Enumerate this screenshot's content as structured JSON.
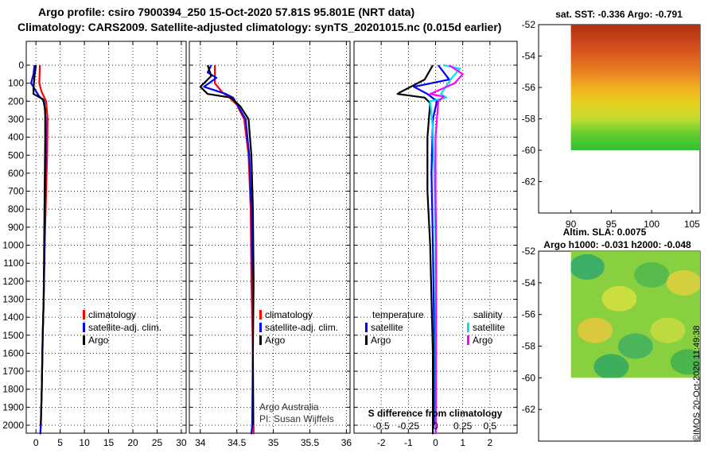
{
  "header": {
    "title_line1": "Argo profile: csiro 7900394_250 15-Oct-2020 57.81S 95.801E (NRT data)",
    "title_line2": "Climatology: CARS2009. Satellite-adjusted climatology: synTS_20201015.nc (0.015d earlier)"
  },
  "colors": {
    "climatology": "#ff0000",
    "satellite_clim": "#0000ff",
    "argo": "#000000",
    "salinity_satellite": "#00e5ee",
    "salinity_argo": "#ff00ff"
  },
  "chart_data": [
    {
      "name": "temperature-profile",
      "type": "line",
      "xlim": [
        -2,
        31
      ],
      "ylim": [
        0,
        2100
      ],
      "y_reversed": true,
      "grid": true,
      "x_ticks": [
        0,
        5,
        10,
        15,
        20,
        25,
        30
      ],
      "y_ticks": [
        0,
        100,
        200,
        300,
        400,
        500,
        600,
        700,
        800,
        900,
        1000,
        1100,
        1200,
        1300,
        1400,
        1500,
        1600,
        1700,
        1800,
        1900,
        2000
      ],
      "legend": [
        {
          "label": "climatology",
          "color": "#ff0000"
        },
        {
          "label": "satellite-adj. clim.",
          "color": "#0000ff"
        },
        {
          "label": "Argo",
          "color": "#000000"
        }
      ],
      "series": [
        {
          "name": "climatology",
          "color": "#ff0000",
          "points": [
            [
              0.8,
              0
            ],
            [
              0.7,
              100
            ],
            [
              1.2,
              150
            ],
            [
              2.1,
              200
            ],
            [
              2.4,
              300
            ],
            [
              2.3,
              500
            ],
            [
              2.2,
              600
            ],
            [
              2.0,
              800
            ],
            [
              1.8,
              1000
            ],
            [
              1.6,
              1300
            ],
            [
              1.4,
              1500
            ],
            [
              1.2,
              1800
            ],
            [
              1.0,
              2000
            ],
            [
              0.9,
              2050
            ]
          ]
        },
        {
          "name": "satellite-adj. clim.",
          "color": "#0000ff",
          "points": [
            [
              -0.3,
              0
            ],
            [
              -0.5,
              50
            ],
            [
              -1.0,
              100
            ],
            [
              0.6,
              170
            ],
            [
              1.7,
              200
            ],
            [
              2.0,
              300
            ],
            [
              2.0,
              500
            ],
            [
              1.9,
              700
            ],
            [
              1.8,
              1000
            ],
            [
              1.6,
              1300
            ],
            [
              1.4,
              1500
            ],
            [
              1.2,
              1800
            ],
            [
              1.0,
              2000
            ],
            [
              0.9,
              2050
            ]
          ]
        },
        {
          "name": "Argo",
          "color": "#000000",
          "points": [
            [
              0.0,
              0
            ],
            [
              -0.3,
              60
            ],
            [
              -0.5,
              130
            ],
            [
              -0.5,
              160
            ],
            [
              1.5,
              190
            ],
            [
              1.9,
              250
            ],
            [
              1.9,
              400
            ],
            [
              1.8,
              700
            ],
            [
              1.7,
              1000
            ],
            [
              1.6,
              1300
            ],
            [
              1.4,
              1500
            ],
            [
              1.2,
              1800
            ],
            [
              1.0,
              2000
            ]
          ]
        }
      ]
    },
    {
      "name": "salinity-profile",
      "type": "line",
      "xlim": [
        33.85,
        36.05
      ],
      "ylim": [
        0,
        2100
      ],
      "y_reversed": true,
      "grid": true,
      "x_ticks": [
        34,
        34.5,
        35,
        35.5,
        36
      ],
      "x_tick_labels": [
        "34",
        "34.5",
        "35",
        "35.5",
        "36"
      ],
      "legend": [
        {
          "label": "climatology",
          "color": "#ff0000"
        },
        {
          "label": "satellite-adj. clim.",
          "color": "#0000ff"
        },
        {
          "label": "Argo",
          "color": "#000000"
        }
      ],
      "annotation": [
        "Argo Australia",
        "PI: Susan Wijffels"
      ],
      "series": [
        {
          "name": "climatology",
          "color": "#ff0000",
          "points": [
            [
              34.2,
              0
            ],
            [
              34.2,
              100
            ],
            [
              34.3,
              150
            ],
            [
              34.4,
              180
            ],
            [
              34.5,
              220
            ],
            [
              34.6,
              300
            ],
            [
              34.66,
              500
            ],
            [
              34.69,
              800
            ],
            [
              34.7,
              1200
            ],
            [
              34.72,
              1600
            ],
            [
              34.73,
              2050
            ]
          ]
        },
        {
          "name": "satellite-adj. clim.",
          "color": "#0000ff",
          "points": [
            [
              34.15,
              0
            ],
            [
              34.1,
              40
            ],
            [
              34.22,
              70
            ],
            [
              34.05,
              120
            ],
            [
              34.35,
              160
            ],
            [
              34.45,
              180
            ],
            [
              34.52,
              230
            ],
            [
              34.62,
              300
            ],
            [
              34.67,
              500
            ],
            [
              34.7,
              800
            ],
            [
              34.72,
              1200
            ],
            [
              34.72,
              1600
            ],
            [
              34.71,
              2000
            ],
            [
              34.7,
              2050
            ]
          ]
        },
        {
          "name": "Argo",
          "color": "#000000",
          "points": [
            [
              34.1,
              0
            ],
            [
              34.15,
              60
            ],
            [
              34.0,
              120
            ],
            [
              34.1,
              160
            ],
            [
              34.42,
              180
            ],
            [
              34.55,
              230
            ],
            [
              34.66,
              300
            ],
            [
              34.7,
              500
            ],
            [
              34.72,
              800
            ],
            [
              34.73,
              1200
            ],
            [
              34.72,
              1600
            ],
            [
              34.72,
              2000
            ]
          ]
        }
      ]
    },
    {
      "name": "difference-profile",
      "type": "line",
      "xlim": [
        -3,
        3
      ],
      "ylim": [
        0,
        2100
      ],
      "y_reversed": true,
      "grid": true,
      "x_ticks": [
        -2,
        -1,
        0,
        1,
        2
      ],
      "x2_ticks": [
        -0.5,
        -0.25,
        0,
        0.25,
        0.5
      ],
      "x2_tick_labels": [
        "-0.5",
        "-0.25",
        "0",
        "0.25",
        "0.5"
      ],
      "xlabel": "S difference from climatology",
      "legend_headers": [
        "temperature",
        "salinity"
      ],
      "legend": [
        {
          "label": "satellite",
          "color": "#0000ff",
          "group": "temperature"
        },
        {
          "label": "Argo",
          "color": "#000000",
          "group": "temperature"
        },
        {
          "label": "satellite",
          "color": "#00e5ee",
          "group": "salinity"
        },
        {
          "label": "Argo",
          "color": "#ff00ff",
          "group": "salinity"
        }
      ],
      "series": [
        {
          "name": "temperature satellite",
          "color": "#0000ff",
          "points": [
            [
              0.1,
              0
            ],
            [
              0.3,
              40
            ],
            [
              0.5,
              80
            ],
            [
              -0.8,
              120
            ],
            [
              -0.3,
              160
            ],
            [
              0.05,
              200
            ],
            [
              -0.1,
              300
            ],
            [
              -0.15,
              600
            ],
            [
              -0.1,
              1000
            ],
            [
              -0.05,
              1500
            ],
            [
              -0.05,
              2000
            ]
          ]
        },
        {
          "name": "temperature Argo",
          "color": "#000000",
          "points": [
            [
              -0.1,
              0
            ],
            [
              -0.4,
              80
            ],
            [
              -1.3,
              150
            ],
            [
              -1.4,
              160
            ],
            [
              -0.4,
              180
            ],
            [
              -0.2,
              210
            ],
            [
              -0.3,
              400
            ],
            [
              -0.3,
              700
            ],
            [
              -0.2,
              1000
            ],
            [
              -0.15,
              1300
            ],
            [
              -0.1,
              1600
            ],
            [
              -0.1,
              2050
            ]
          ]
        },
        {
          "name": "salinity satellite",
          "color": "#00e5ee",
          "points": [
            [
              0.3,
              0
            ],
            [
              0.9,
              20
            ],
            [
              0.6,
              70
            ],
            [
              0.2,
              160
            ],
            [
              0.4,
              180
            ],
            [
              -0.2,
              200
            ],
            [
              -0.1,
              350
            ],
            [
              -0.05,
              600
            ],
            [
              0.0,
              1000
            ],
            [
              0.0,
              1500
            ],
            [
              0.0,
              2050
            ]
          ]
        },
        {
          "name": "salinity Argo",
          "color": "#ff00ff",
          "points": [
            [
              0.5,
              0
            ],
            [
              1.0,
              50
            ],
            [
              0.7,
              100
            ],
            [
              -0.2,
              160
            ],
            [
              0.3,
              175
            ],
            [
              0.1,
              200
            ],
            [
              0.0,
              400
            ],
            [
              0.0,
              700
            ],
            [
              0.02,
              1000
            ],
            [
              0.02,
              1500
            ],
            [
              0.01,
              2050
            ]
          ]
        }
      ]
    },
    {
      "name": "sst-map",
      "type": "heatmap",
      "title": "sat. SST: -0.336 Argo: -0.791",
      "x_ticks": [
        90,
        95,
        100,
        105
      ],
      "y_ticks": [
        -52,
        -54,
        -56,
        -58,
        -60,
        -62
      ],
      "xlim": [
        86,
        106
      ],
      "ylim": [
        -64,
        -52
      ],
      "extent": {
        "lon": [
          90,
          106
        ],
        "lat": [
          -60,
          -52
        ]
      },
      "gradient": [
        {
          "lat": -52,
          "color": "#b03010"
        },
        {
          "lat": -53.5,
          "color": "#d45020"
        },
        {
          "lat": -55,
          "color": "#e88020"
        },
        {
          "lat": -56,
          "color": "#f0b020"
        },
        {
          "lat": -57,
          "color": "#e8d020"
        },
        {
          "lat": -58,
          "color": "#c0dc30"
        },
        {
          "lat": -59,
          "color": "#60cc30"
        },
        {
          "lat": -60,
          "color": "#30c030"
        }
      ]
    },
    {
      "name": "sla-map",
      "type": "heatmap",
      "title_line1": "Altim. SLA: 0.0075",
      "title_line2": "Argo h1000: -0.031 h2000: -0.048",
      "y_ticks": [
        -52,
        -54,
        -56,
        -58,
        -60,
        -62
      ],
      "ylim": [
        -64,
        -52
      ],
      "extent": {
        "lon": [
          90,
          106
        ],
        "lat": [
          -60,
          -52
        ]
      },
      "base_color": "#88d040",
      "blobs": [
        {
          "lon": 92,
          "lat": -53,
          "color": "#30a870"
        },
        {
          "lon": 96,
          "lat": -55,
          "color": "#d8e040"
        },
        {
          "lon": 100,
          "lat": -53.5,
          "color": "#50b850"
        },
        {
          "lon": 104,
          "lat": -54,
          "color": "#e0d040"
        },
        {
          "lon": 93,
          "lat": -57,
          "color": "#e8c840"
        },
        {
          "lon": 98,
          "lat": -58,
          "color": "#40b060"
        },
        {
          "lon": 102,
          "lat": -57,
          "color": "#c8dc40"
        },
        {
          "lon": 95,
          "lat": -59.3,
          "color": "#30a860"
        },
        {
          "lon": 104.5,
          "lat": -59,
          "color": "#40b050"
        }
      ]
    }
  ],
  "footer": {
    "stamp": "©IMOS 20-Oct-2020 11:49:38"
  }
}
